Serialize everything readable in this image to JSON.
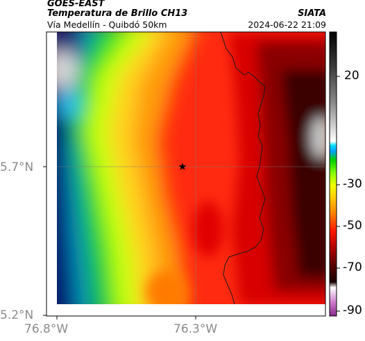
{
  "header": {
    "satellite": "GOES-EAST",
    "product": "Temperatura de Brillo CH13",
    "region": "Vía Medellín - Quibdó 50km",
    "organization": "SIATA",
    "timestamp": "2024-06-22 21:09"
  },
  "axes": {
    "lon_ticks": [
      "76.8°W",
      "76.3°W"
    ],
    "lat_ticks": [
      "5.7°N",
      "5.2°N"
    ]
  },
  "colorbar": {
    "labels": [
      "20",
      "-30",
      "-50",
      "-70",
      "-90"
    ]
  },
  "markers": {
    "station_symbol": "star-icon"
  }
}
